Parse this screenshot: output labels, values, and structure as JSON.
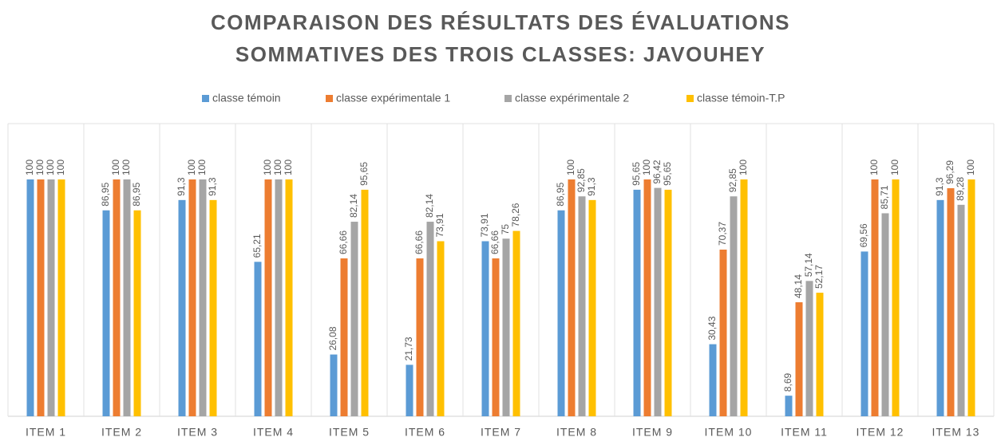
{
  "chart_data": {
    "type": "bar",
    "title": [
      "COMPARAISON DES RÉSULTATS DES ÉVALUATIONS",
      "SOMMATIVES DES TROIS CLASSES: JAVOUHEY"
    ],
    "categories": [
      "ITEM 1",
      "ITEM 2",
      "ITEM 3",
      "ITEM 4",
      "ITEM 5",
      "ITEM 6",
      "ITEM 7",
      "ITEM 8",
      "ITEM 9",
      "ITEM 10",
      "ITEM 11",
      "ITEM 12",
      "ITEM 13"
    ],
    "series": [
      {
        "name": "classe témoin",
        "color": "#5b9bd5",
        "values": [
          100,
          86.95,
          91.3,
          65.21,
          26.08,
          21.73,
          73.91,
          86.95,
          95.65,
          30.43,
          8.69,
          69.56,
          91.3
        ],
        "value_labels": [
          "100",
          "86,95",
          "91,3",
          "65,21",
          "26,08",
          "21,73",
          "73,91",
          "86,95",
          "95,65",
          "30,43",
          "8,69",
          "69,56",
          "91,3"
        ]
      },
      {
        "name": "classe expérimentale 1",
        "color": "#ed7d31",
        "values": [
          100,
          100,
          100,
          100,
          66.66,
          66.66,
          66.66,
          100,
          100,
          70.37,
          48.14,
          100,
          96.29
        ],
        "value_labels": [
          "100",
          "100",
          "100",
          "100",
          "66,66",
          "66,66",
          "66,66",
          "100",
          "100",
          "70,37",
          "48,14",
          "100",
          "96,29"
        ]
      },
      {
        "name": "classe expérimentale 2",
        "color": "#a5a5a5",
        "values": [
          100,
          100,
          100,
          100,
          82.14,
          82.14,
          75,
          92.85,
          96.42,
          92.85,
          57.14,
          85.71,
          89.28
        ],
        "value_labels": [
          "100",
          "100",
          "100",
          "100",
          "82,14",
          "82,14",
          "75",
          "92,85",
          "96,42",
          "92,85",
          "57,14",
          "85,71",
          "89,28"
        ]
      },
      {
        "name": "classe témoin-T.P",
        "color": "#ffc000",
        "values": [
          100,
          86.95,
          91.3,
          100,
          95.65,
          73.91,
          78.26,
          91.3,
          95.65,
          100,
          52.17,
          100,
          100
        ],
        "value_labels": [
          "100",
          "86,95",
          "91,3",
          "100",
          "95,65",
          "73,91",
          "78,26",
          "91,3",
          "95,65",
          "100",
          "52,17",
          "100",
          "100"
        ]
      }
    ],
    "ylim": [
      0,
      100
    ],
    "legend": "top"
  }
}
